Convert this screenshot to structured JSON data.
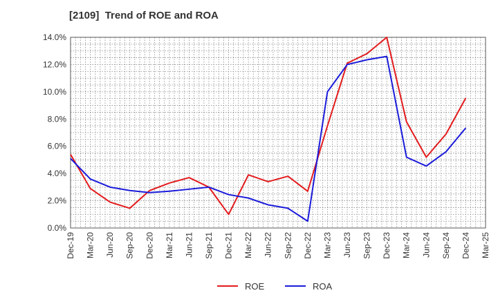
{
  "chart_data": {
    "type": "line",
    "title": "[2109]  Trend of ROE and ROA",
    "xlabel": "",
    "ylabel": "",
    "ylim": [
      0,
      14
    ],
    "y_ticks": [
      "0.0%",
      "2.0%",
      "4.0%",
      "6.0%",
      "8.0%",
      "10.0%",
      "12.0%",
      "14.0%"
    ],
    "x_tick_labels": [
      "Dec-19",
      "Mar-20",
      "Jun-20",
      "Sep-20",
      "Dec-20",
      "Mar-21",
      "Jun-21",
      "Sep-21",
      "Dec-21",
      "Mar-22",
      "Jun-22",
      "Sep-22",
      "Dec-22",
      "Mar-23",
      "Jun-23",
      "Sep-23",
      "Dec-23",
      "Mar-24",
      "Jun-24",
      "Sep-24",
      "Dec-24",
      "Mar-25"
    ],
    "grid": true,
    "legend_position": "bottom",
    "series": [
      {
        "name": "ROE",
        "color": "#e31a1c",
        "values": [
          5.4,
          2.9,
          1.9,
          1.45,
          2.75,
          3.3,
          3.7,
          3.0,
          1.0,
          3.9,
          3.4,
          3.8,
          2.7,
          7.5,
          12.1,
          12.8,
          14.0,
          7.8,
          5.2,
          6.9,
          9.55,
          null
        ]
      },
      {
        "name": "ROA",
        "color": "#1a1adb",
        "values": [
          5.1,
          3.6,
          3.0,
          2.75,
          2.6,
          2.7,
          2.85,
          3.0,
          2.45,
          2.2,
          1.7,
          1.45,
          0.5,
          10.0,
          12.0,
          12.35,
          12.6,
          5.2,
          4.55,
          5.6,
          7.35,
          null
        ]
      }
    ]
  }
}
